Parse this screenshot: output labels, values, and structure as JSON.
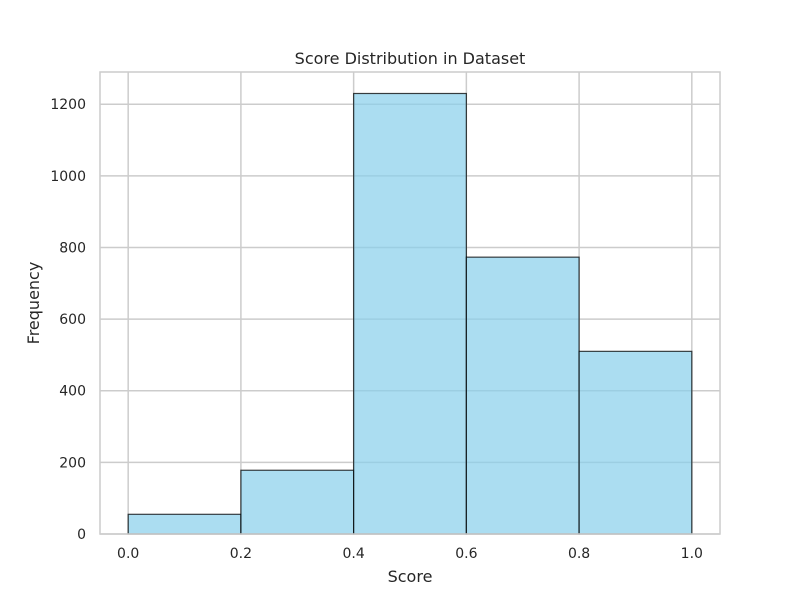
{
  "chart_data": {
    "type": "bar",
    "title": "Score Distribution in Dataset",
    "xlabel": "Score",
    "ylabel": "Frequency",
    "bins": [
      {
        "start": 0.0,
        "end": 0.2,
        "value": 55
      },
      {
        "start": 0.2,
        "end": 0.4,
        "value": 178
      },
      {
        "start": 0.4,
        "end": 0.6,
        "value": 1230
      },
      {
        "start": 0.6,
        "end": 0.8,
        "value": 773
      },
      {
        "start": 0.8,
        "end": 1.0,
        "value": 510
      }
    ],
    "xlim": [
      -0.05,
      1.05
    ],
    "ylim": [
      0,
      1290
    ],
    "xticks": [
      "0.0",
      "0.2",
      "0.4",
      "0.6",
      "0.8",
      "1.0"
    ],
    "yticks": [
      "0",
      "200",
      "400",
      "600",
      "800",
      "1000",
      "1200"
    ],
    "grid": true,
    "colors": {
      "bar_fill": "#87ceeb",
      "bar_edge": "#000000",
      "grid": "#cccccc",
      "frame": "#cccccc",
      "text": "#262626"
    }
  }
}
